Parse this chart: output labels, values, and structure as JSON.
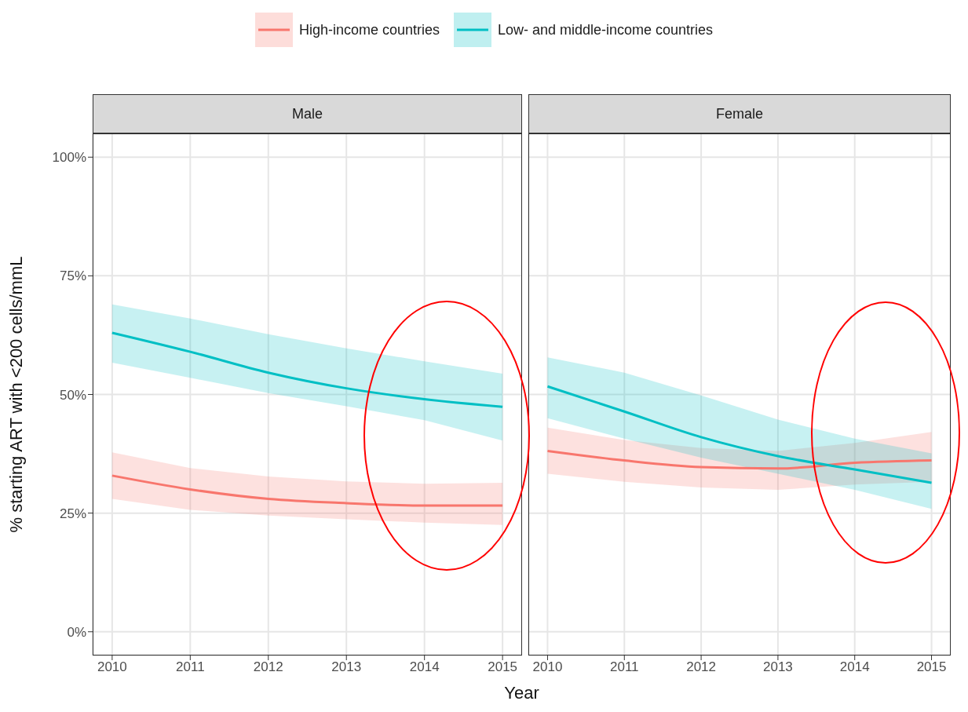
{
  "chart_data": [
    {
      "type": "line",
      "title": "Male",
      "ylabel": "% starting ART with <200 cells/mmL",
      "xlabel": "Year",
      "x": [
        2010,
        2011,
        2012,
        2013,
        2014,
        2015
      ],
      "xlim": [
        2009.75,
        2015.25
      ],
      "xticks": [
        2010,
        2011,
        2012,
        2013,
        2014,
        2015
      ],
      "ylim": [
        -5,
        105
      ],
      "yticks": [
        {
          "value": 0,
          "label": "0%"
        },
        {
          "value": 25,
          "label": "25%"
        },
        {
          "value": 50,
          "label": "50%"
        },
        {
          "value": 75,
          "label": "75%"
        },
        {
          "value": 100,
          "label": "100%"
        }
      ],
      "grid": true,
      "legend": "top",
      "series": [
        {
          "name": "High-income countries",
          "color": "#f8766d",
          "values": [
            32.9,
            30,
            28,
            27.1,
            26.6,
            26.6
          ],
          "lower": [
            28,
            25.7,
            24.5,
            23.7,
            23,
            22.5
          ],
          "upper": [
            37.8,
            34.5,
            32.7,
            31.7,
            31.2,
            31.4
          ]
        },
        {
          "name": "Low- and middle-income countries",
          "color": "#00bfc4",
          "values": [
            63,
            59,
            54.6,
            51.3,
            49,
            47.4
          ],
          "lower": [
            56.7,
            53.5,
            50.3,
            47.5,
            44.6,
            40.3
          ],
          "upper": [
            69,
            66,
            62.7,
            59.7,
            57,
            54.4
          ]
        }
      ]
    },
    {
      "type": "line",
      "title": "Female",
      "x": [
        2010,
        2011,
        2012,
        2013,
        2014,
        2015
      ],
      "xlim": [
        2009.75,
        2015.25
      ],
      "xticks": [
        2010,
        2011,
        2012,
        2013,
        2014,
        2015
      ],
      "ylim": [
        -5,
        105
      ],
      "yticks": [
        0,
        25,
        50,
        75,
        100
      ],
      "tick_labels": "x",
      "grid": true,
      "series": [
        {
          "color": "#f8766d",
          "values": [
            38.1,
            36.1,
            34.7,
            34.4,
            35.6,
            36.1
          ],
          "lower": [
            33.3,
            31.6,
            30.4,
            29.9,
            31,
            31.6
          ],
          "upper": [
            43,
            40.4,
            38.7,
            38.1,
            39.8,
            42.1
          ]
        },
        {
          "color": "#00bfc4",
          "values": [
            51.7,
            46.4,
            41,
            37,
            34.2,
            31.4
          ],
          "lower": [
            45,
            40.7,
            36.7,
            33.3,
            29.9,
            25.9
          ],
          "upper": [
            57.8,
            54.6,
            49.8,
            44.7,
            40.7,
            37.6
          ]
        }
      ]
    }
  ]
}
